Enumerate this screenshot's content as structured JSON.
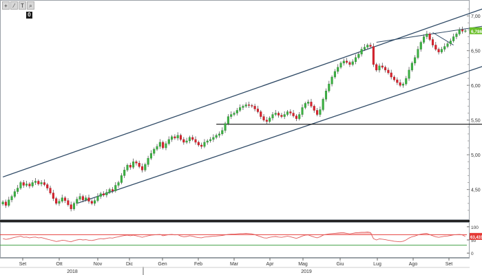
{
  "toolbar": {
    "buttons": [
      {
        "name": "crosshair-icon",
        "glyph": "+"
      },
      {
        "name": "draw-line-icon",
        "glyph": "⁄"
      },
      {
        "name": "text-tool-icon",
        "glyph": "T"
      },
      {
        "name": "zoom-icon",
        "glyph": "⌕"
      }
    ],
    "badge": "0"
  },
  "chart_data": [
    {
      "type": "candlestick",
      "ylim": [
        4.1,
        7.15
      ],
      "y_ticks": [
        "4,50",
        "5,00",
        "5,50",
        "6,00",
        "6,50",
        "7,00"
      ],
      "y_tick_values": [
        4.5,
        5.0,
        5.5,
        6.0,
        6.5,
        7.0
      ],
      "last_value_label": "6,786",
      "last_value": 6.786,
      "x_month_labels": [
        "Set",
        "Ott",
        "Nov",
        "Dic",
        "Gen",
        "Feb",
        "Mar",
        "Apr",
        "Mag",
        "Giu",
        "Lug",
        "Ago",
        "Set"
      ],
      "x_year_labels": [
        "2018",
        "2019"
      ],
      "close_series": [
        4.32,
        4.27,
        4.35,
        4.4,
        4.47,
        4.52,
        4.6,
        4.56,
        4.58,
        4.55,
        4.6,
        4.62,
        4.58,
        4.6,
        4.57,
        4.52,
        4.45,
        4.37,
        4.3,
        4.33,
        4.38,
        4.34,
        4.28,
        4.22,
        4.3,
        4.36,
        4.4,
        4.35,
        4.38,
        4.33,
        4.3,
        4.34,
        4.4,
        4.44,
        4.42,
        4.46,
        4.5,
        4.48,
        4.56,
        4.6,
        4.7,
        4.78,
        4.85,
        4.82,
        4.9,
        4.88,
        4.83,
        4.78,
        4.86,
        4.95,
        5.02,
        5.08,
        5.12,
        5.18,
        5.1,
        5.16,
        5.22,
        5.26,
        5.24,
        5.28,
        5.22,
        5.18,
        5.2,
        5.25,
        5.22,
        5.18,
        5.14,
        5.12,
        5.18,
        5.2,
        5.22,
        5.25,
        5.28,
        5.3,
        5.35,
        5.45,
        5.55,
        5.58,
        5.6,
        5.64,
        5.68,
        5.7,
        5.72,
        5.71,
        5.7,
        5.66,
        5.62,
        5.55,
        5.5,
        5.48,
        5.53,
        5.58,
        5.6,
        5.57,
        5.55,
        5.58,
        5.62,
        5.6,
        5.56,
        5.52,
        5.58,
        5.68,
        5.74,
        5.76,
        5.7,
        5.64,
        5.58,
        5.65,
        5.8,
        5.92,
        6.02,
        6.12,
        6.2,
        6.26,
        6.32,
        6.35,
        6.33,
        6.3,
        6.34,
        6.4,
        6.45,
        6.52,
        6.55,
        6.58,
        6.56,
        6.3,
        6.22,
        6.28,
        6.26,
        6.22,
        6.18,
        6.12,
        6.08,
        6.04,
        6.0,
        6.02,
        6.1,
        6.22,
        6.32,
        6.4,
        6.52,
        6.62,
        6.7,
        6.74,
        6.66,
        6.58,
        6.52,
        6.48,
        6.52,
        6.56,
        6.6,
        6.64,
        6.7,
        6.74,
        6.8,
        6.78,
        6.786
      ],
      "channel": {
        "upper": {
          "start": [
            0,
            4.68
          ],
          "end": [
            163,
            7.12
          ]
        },
        "lower": {
          "start": [
            25,
            4.3
          ],
          "end": [
            163,
            6.29
          ]
        }
      },
      "horizontal_lines": [
        {
          "value": 5.44,
          "from": 72,
          "to": 163
        }
      ],
      "trend_lines": [
        {
          "from": [
            126,
            6.62
          ],
          "to": [
            163,
            6.86
          ]
        },
        {
          "from": [
            145,
            6.76
          ],
          "to": [
            152,
            6.58
          ]
        }
      ]
    },
    {
      "type": "line",
      "name": "RSI",
      "ylim": [
        -10,
        110
      ],
      "y_ticks": [
        "100",
        "50",
        "0"
      ],
      "y_tick_values": [
        100,
        50,
        0
      ],
      "overbought": 70,
      "oversold": 30,
      "last_value_label": "63,431",
      "last_value": 63.431,
      "values": [
        55,
        52,
        54,
        57,
        60,
        62,
        64,
        60,
        61,
        58,
        60,
        61,
        58,
        59,
        56,
        53,
        50,
        47,
        44,
        46,
        49,
        48,
        45,
        43,
        47,
        50,
        52,
        50,
        51,
        49,
        48,
        50,
        53,
        55,
        54,
        56,
        58,
        57,
        60,
        62,
        65,
        67,
        68,
        66,
        68,
        66,
        63,
        60,
        63,
        66,
        68,
        69,
        70,
        71,
        66,
        68,
        70,
        71,
        69,
        70,
        65,
        62,
        63,
        66,
        64,
        61,
        59,
        58,
        61,
        62,
        63,
        64,
        65,
        66,
        67,
        69,
        71,
        72,
        72,
        73,
        74,
        74,
        75,
        74,
        73,
        70,
        66,
        62,
        58,
        57,
        60,
        62,
        63,
        61,
        60,
        62,
        64,
        62,
        59,
        56,
        60,
        65,
        68,
        69,
        65,
        61,
        58,
        62,
        68,
        71,
        73,
        74,
        75,
        76,
        77,
        77,
        75,
        73,
        75,
        77,
        78,
        79,
        79,
        80,
        78,
        55,
        50,
        54,
        53,
        51,
        49,
        47,
        45,
        44,
        43,
        45,
        50,
        57,
        62,
        65,
        69,
        72,
        74,
        75,
        70,
        66,
        62,
        60,
        62,
        64,
        65,
        67,
        69,
        70,
        71,
        69,
        63
      ]
    }
  ]
}
